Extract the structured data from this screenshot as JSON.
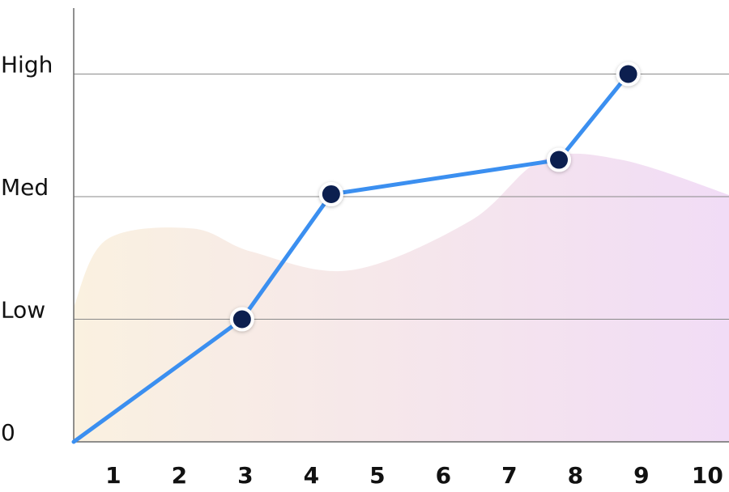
{
  "chart_data": {
    "type": "line",
    "title": "",
    "xlabel": "",
    "ylabel": "",
    "x_ticks": [
      "1",
      "2",
      "3",
      "4",
      "5",
      "6",
      "7",
      "8",
      "9",
      "10"
    ],
    "y_ticks": [
      {
        "label": "0",
        "value": 0
      },
      {
        "label": "Low",
        "value": 1
      },
      {
        "label": "Med",
        "value": 2
      },
      {
        "label": "High",
        "value": 3
      }
    ],
    "xlim": [
      0,
      10
    ],
    "ylim": [
      0,
      3.7
    ],
    "grid": "horizontal",
    "series": [
      {
        "name": "line",
        "color": "#3b8ff0",
        "marker_color": "#0c1f4f",
        "points": [
          {
            "x": 0,
            "y": 0,
            "marker": false
          },
          {
            "x": 2.55,
            "y": 1,
            "marker": true
          },
          {
            "x": 3.9,
            "y": 2.02,
            "marker": true
          },
          {
            "x": 7.35,
            "y": 2.3,
            "marker": true
          },
          {
            "x": 8.4,
            "y": 3,
            "marker": true
          }
        ]
      }
    ],
    "background_area": {
      "color_start": "#faf1e0",
      "color_end": "#f1dcf6",
      "points": [
        {
          "x": 0,
          "y": 1.1
        },
        {
          "x": 0.5,
          "y": 1.65
        },
        {
          "x": 1.8,
          "y": 1.74
        },
        {
          "x": 2.7,
          "y": 1.55
        },
        {
          "x": 4.2,
          "y": 1.4
        },
        {
          "x": 6.0,
          "y": 1.8
        },
        {
          "x": 7.1,
          "y": 2.3
        },
        {
          "x": 8.3,
          "y": 2.3
        },
        {
          "x": 10,
          "y": 2.0
        }
      ]
    }
  }
}
